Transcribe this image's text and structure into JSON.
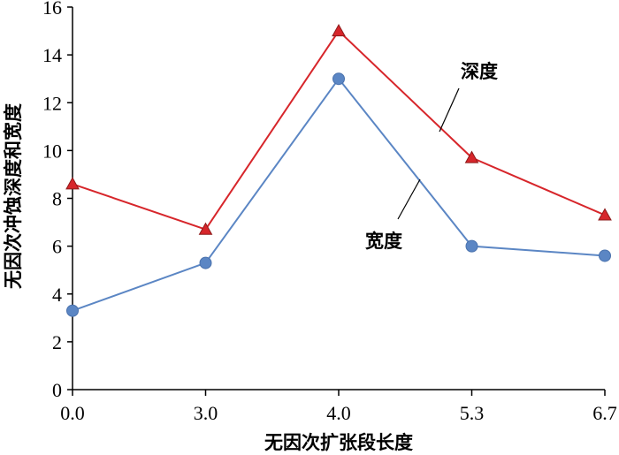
{
  "chart_data": {
    "type": "line",
    "categories": [
      "0.0",
      "3.0",
      "4.0",
      "5.3",
      "6.7"
    ],
    "xlabel": "无因次扩张段长度",
    "ylabel": "无因次冲蚀深度和宽度",
    "ylim": [
      0,
      16
    ],
    "yticks": [
      "0",
      "2",
      "4",
      "6",
      "8",
      "10",
      "12",
      "14",
      "16"
    ],
    "grid": false,
    "series": [
      {
        "name": "深度",
        "values": [
          8.6,
          6.7,
          15.0,
          9.7,
          7.3
        ],
        "color": "#d7262b",
        "marker": "triangle"
      },
      {
        "name": "宽度",
        "values": [
          3.3,
          5.3,
          13.0,
          6.0,
          5.6
        ],
        "color": "#5b86c4",
        "marker": "circle"
      }
    ]
  }
}
